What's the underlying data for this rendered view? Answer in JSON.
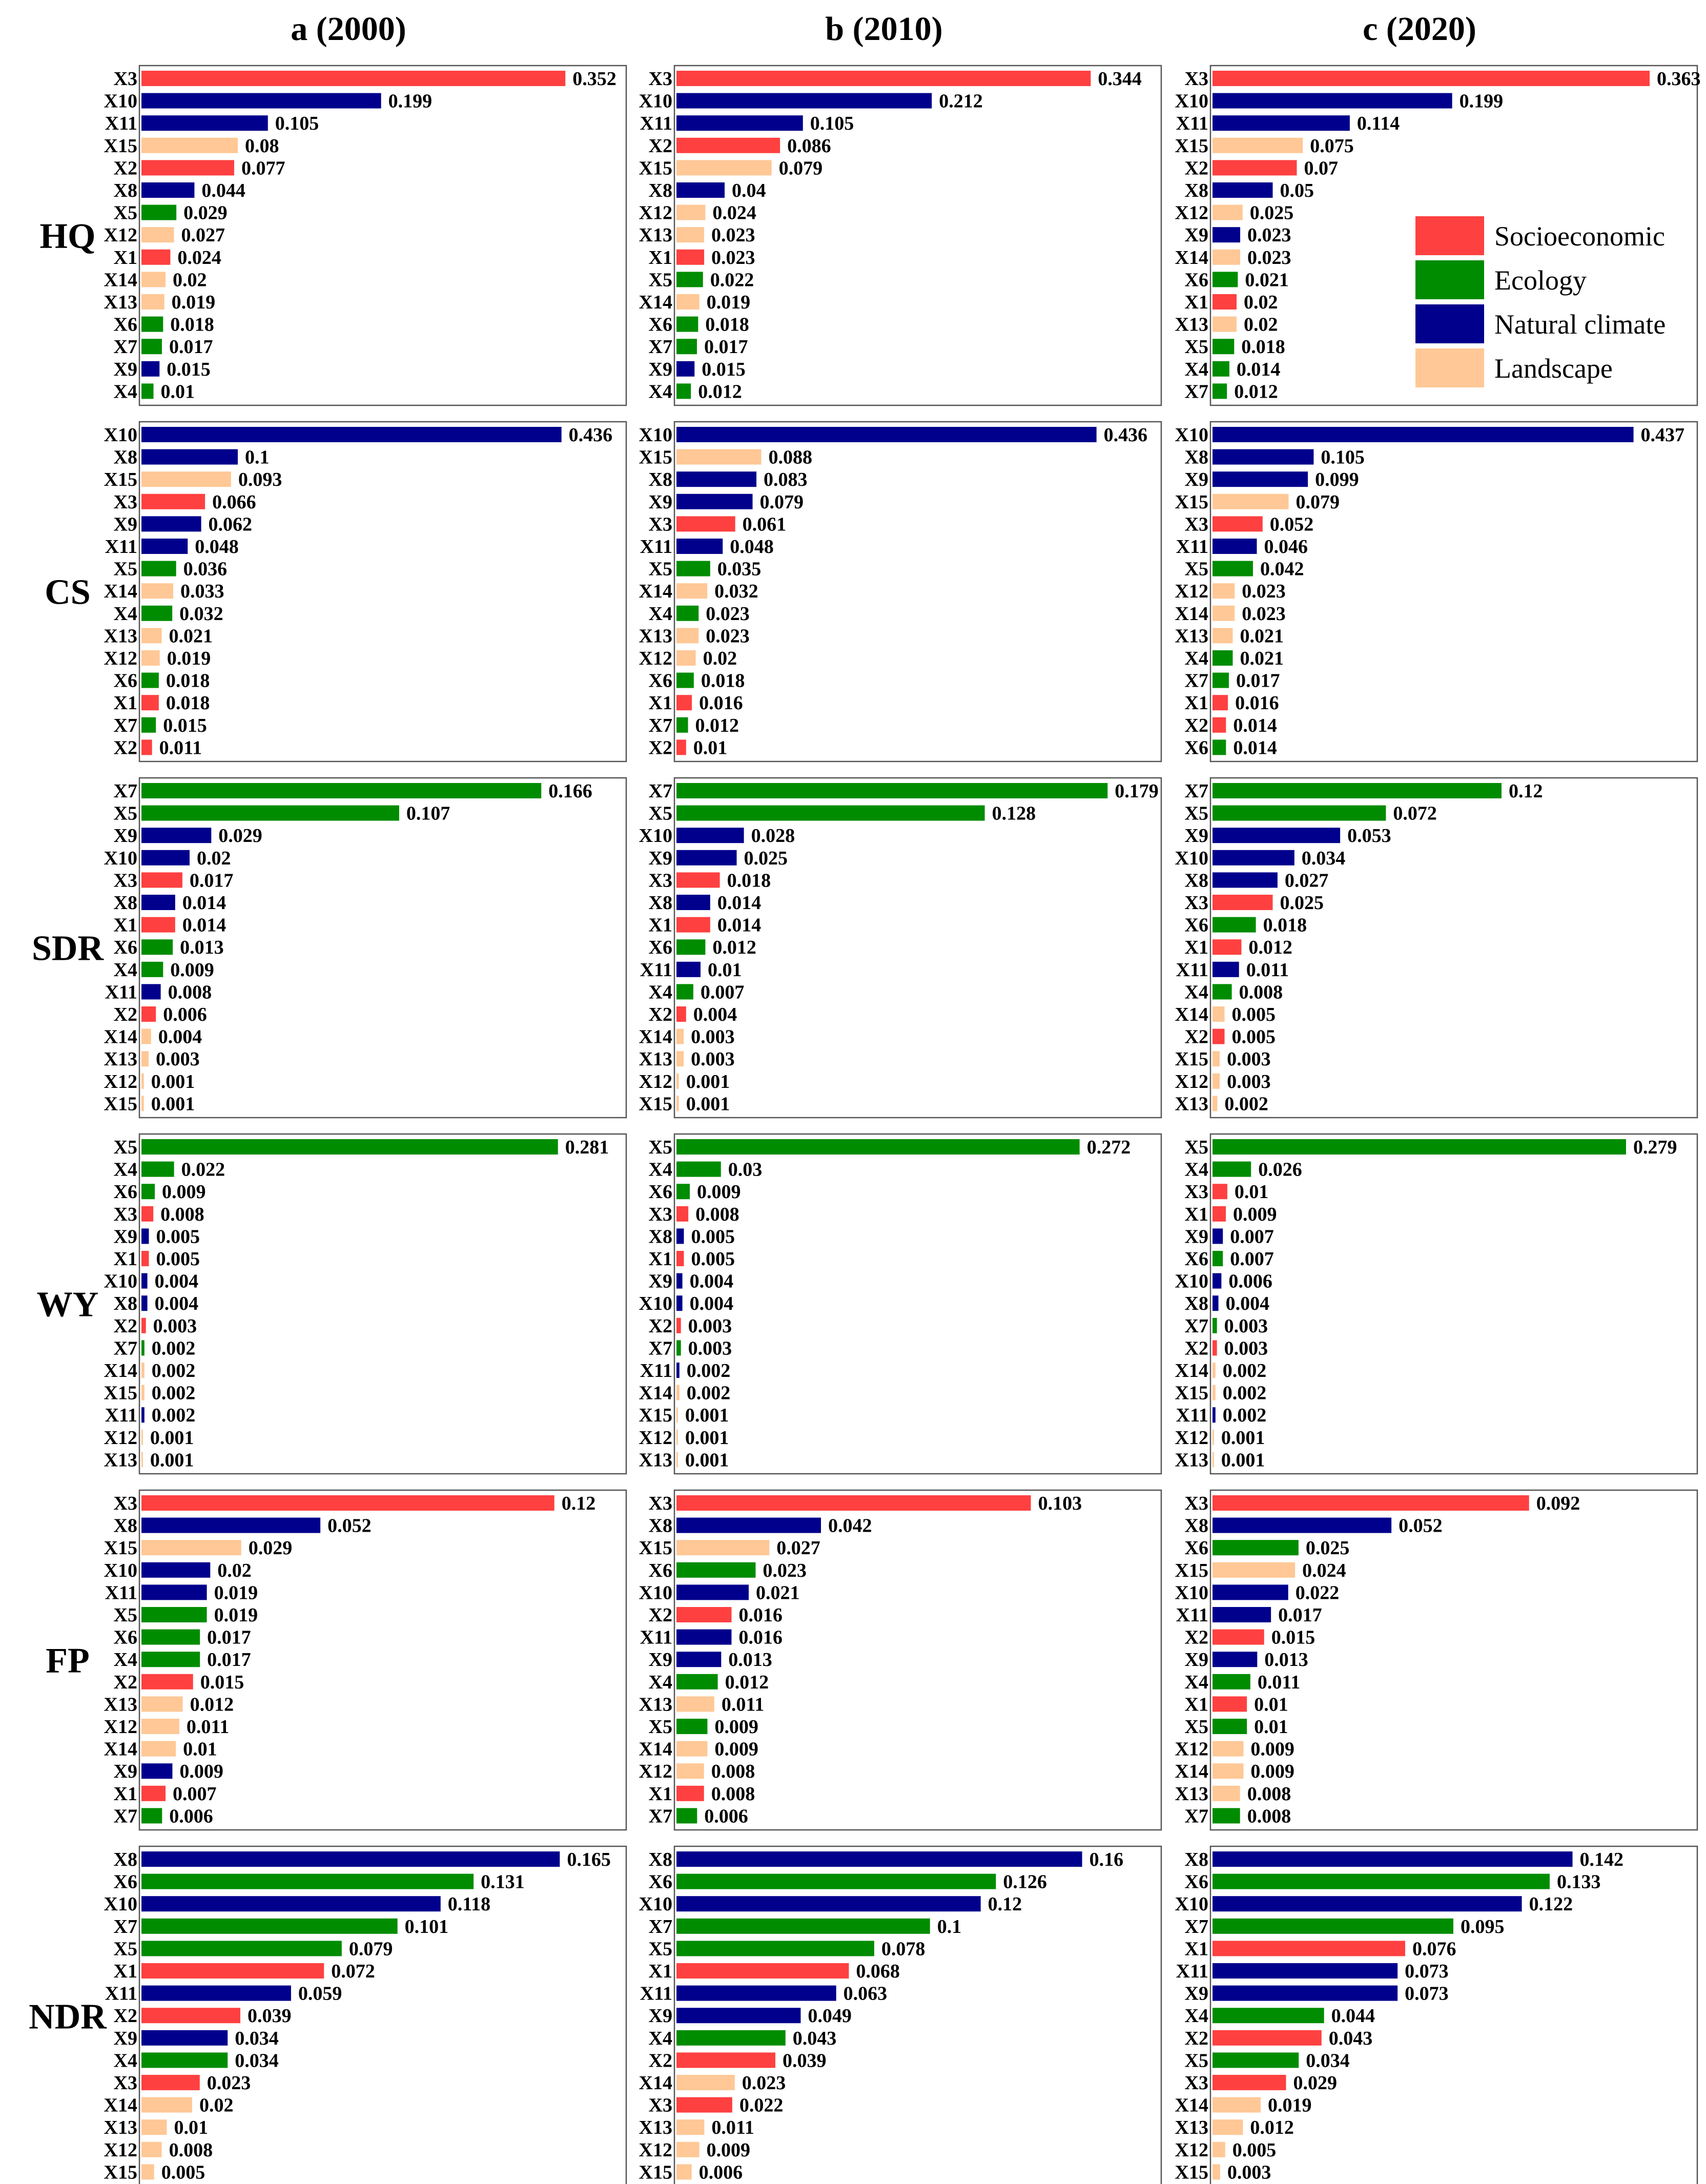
{
  "colors": {
    "Socioeconomic": "#FF4040",
    "Ecology": "#008C00",
    "Natural climate": "#00008C",
    "Landscape": "#FFC896"
  },
  "chart_data": {
    "type": "bar",
    "orientation": "horizontal",
    "columns": [
      "a (2000)",
      "b (2010)",
      "c (2020)"
    ],
    "rows": [
      "HQ",
      "CS",
      "SDR",
      "WY",
      "FP",
      "NDR"
    ],
    "legend": {
      "placement": "top-right panel (HQ, c (2020))",
      "entries": [
        "Socioeconomic",
        "Ecology",
        "Natural climate",
        "Landscape"
      ]
    },
    "variable_groups": {
      "X1": "Socioeconomic",
      "X2": "Socioeconomic",
      "X3": "Socioeconomic",
      "X4": "Ecology",
      "X5": "Ecology",
      "X6": "Ecology",
      "X7": "Ecology",
      "X8": "Natural climate",
      "X9": "Natural climate",
      "X10": "Natural climate",
      "X11": "Natural climate",
      "X12": "Landscape",
      "X13": "Landscape",
      "X14": "Landscape",
      "X15": "Landscape"
    },
    "panels": [
      {
        "row": "HQ",
        "column": "a (2000)",
        "xmax": 0.4,
        "categories": [
          "X3",
          "X10",
          "X11",
          "X15",
          "X2",
          "X8",
          "X5",
          "X12",
          "X1",
          "X14",
          "X13",
          "X6",
          "X7",
          "X9",
          "X4"
        ],
        "values": [
          "0.352",
          "0.199",
          "0.105",
          "0.08",
          "0.077",
          "0.044",
          "0.029",
          "0.027",
          "0.024",
          "0.02",
          "0.019",
          "0.018",
          "0.017",
          "0.015",
          "0.01"
        ]
      },
      {
        "row": "HQ",
        "column": "b (2010)",
        "xmax": 0.4,
        "categories": [
          "X3",
          "X10",
          "X11",
          "X2",
          "X15",
          "X8",
          "X12",
          "X13",
          "X1",
          "X5",
          "X14",
          "X6",
          "X7",
          "X9",
          "X4"
        ],
        "values": [
          "0.344",
          "0.212",
          "0.105",
          "0.086",
          "0.079",
          "0.04",
          "0.024",
          "0.023",
          "0.023",
          "0.022",
          "0.019",
          "0.018",
          "0.017",
          "0.015",
          "0.012"
        ]
      },
      {
        "row": "HQ",
        "column": "c (2020)",
        "xmax": 0.4,
        "categories": [
          "X3",
          "X10",
          "X11",
          "X15",
          "X2",
          "X8",
          "X12",
          "X9",
          "X14",
          "X6",
          "X1",
          "X13",
          "X5",
          "X4",
          "X7"
        ],
        "values": [
          "0.363",
          "0.199",
          "0.114",
          "0.075",
          "0.07",
          "0.05",
          "0.025",
          "0.023",
          "0.023",
          "0.021",
          "0.02",
          "0.02",
          "0.018",
          "0.014",
          "0.012"
        ]
      },
      {
        "row": "CS",
        "column": "a (2000)",
        "xmax": 0.5,
        "categories": [
          "X10",
          "X8",
          "X15",
          "X3",
          "X9",
          "X11",
          "X5",
          "X14",
          "X4",
          "X13",
          "X12",
          "X6",
          "X1",
          "X7",
          "X2"
        ],
        "values": [
          "0.436",
          "0.1",
          "0.093",
          "0.066",
          "0.062",
          "0.048",
          "0.036",
          "0.033",
          "0.032",
          "0.021",
          "0.019",
          "0.018",
          "0.018",
          "0.015",
          "0.011"
        ]
      },
      {
        "row": "CS",
        "column": "b (2010)",
        "xmax": 0.5,
        "categories": [
          "X10",
          "X15",
          "X8",
          "X9",
          "X3",
          "X11",
          "X5",
          "X14",
          "X4",
          "X13",
          "X12",
          "X6",
          "X1",
          "X7",
          "X2"
        ],
        "values": [
          "0.436",
          "0.088",
          "0.083",
          "0.079",
          "0.061",
          "0.048",
          "0.035",
          "0.032",
          "0.023",
          "0.023",
          "0.02",
          "0.018",
          "0.016",
          "0.012",
          "0.01"
        ]
      },
      {
        "row": "CS",
        "column": "c (2020)",
        "xmax": 0.5,
        "categories": [
          "X10",
          "X8",
          "X9",
          "X15",
          "X3",
          "X11",
          "X5",
          "X12",
          "X14",
          "X13",
          "X4",
          "X7",
          "X1",
          "X2",
          "X6"
        ],
        "values": [
          "0.437",
          "0.105",
          "0.099",
          "0.079",
          "0.052",
          "0.046",
          "0.042",
          "0.023",
          "0.023",
          "0.021",
          "0.021",
          "0.017",
          "0.016",
          "0.014",
          "0.014"
        ]
      },
      {
        "row": "SDR",
        "column": "a (2000)",
        "xmax": 0.2,
        "categories": [
          "X7",
          "X5",
          "X9",
          "X10",
          "X3",
          "X8",
          "X1",
          "X6",
          "X4",
          "X11",
          "X2",
          "X14",
          "X13",
          "X12",
          "X15"
        ],
        "values": [
          "0.166",
          "0.107",
          "0.029",
          "0.02",
          "0.017",
          "0.014",
          "0.014",
          "0.013",
          "0.009",
          "0.008",
          "0.006",
          "0.004",
          "0.003",
          "0.001",
          "0.001"
        ]
      },
      {
        "row": "SDR",
        "column": "b (2010)",
        "xmax": 0.2,
        "categories": [
          "X7",
          "X5",
          "X10",
          "X9",
          "X3",
          "X8",
          "X1",
          "X6",
          "X11",
          "X4",
          "X2",
          "X14",
          "X13",
          "X12",
          "X15"
        ],
        "values": [
          "0.179",
          "0.128",
          "0.028",
          "0.025",
          "0.018",
          "0.014",
          "0.014",
          "0.012",
          "0.01",
          "0.007",
          "0.004",
          "0.003",
          "0.003",
          "0.001",
          "0.001"
        ]
      },
      {
        "row": "SDR",
        "column": "c (2020)",
        "xmax": 0.2,
        "categories": [
          "X7",
          "X5",
          "X9",
          "X10",
          "X8",
          "X3",
          "X6",
          "X1",
          "X11",
          "X4",
          "X14",
          "X2",
          "X15",
          "X12",
          "X13"
        ],
        "values": [
          "0.12",
          "0.072",
          "0.053",
          "0.034",
          "0.027",
          "0.025",
          "0.018",
          "0.012",
          "0.011",
          "0.008",
          "0.005",
          "0.005",
          "0.003",
          "0.003",
          "0.002"
        ]
      },
      {
        "row": "WY",
        "column": "a (2000)",
        "xmax": 0.325,
        "categories": [
          "X5",
          "X4",
          "X6",
          "X3",
          "X9",
          "X1",
          "X10",
          "X8",
          "X2",
          "X7",
          "X14",
          "X15",
          "X11",
          "X12",
          "X13"
        ],
        "values": [
          "0.281",
          "0.022",
          "0.009",
          "0.008",
          "0.005",
          "0.005",
          "0.004",
          "0.004",
          "0.003",
          "0.002",
          "0.002",
          "0.002",
          "0.002",
          "0.001",
          "0.001"
        ]
      },
      {
        "row": "WY",
        "column": "b (2010)",
        "xmax": 0.325,
        "categories": [
          "X5",
          "X4",
          "X6",
          "X3",
          "X8",
          "X1",
          "X9",
          "X10",
          "X2",
          "X7",
          "X11",
          "X14",
          "X15",
          "X12",
          "X13"
        ],
        "values": [
          "0.272",
          "0.03",
          "0.009",
          "0.008",
          "0.005",
          "0.005",
          "0.004",
          "0.004",
          "0.003",
          "0.003",
          "0.002",
          "0.002",
          "0.001",
          "0.001",
          "0.001"
        ]
      },
      {
        "row": "WY",
        "column": "c (2020)",
        "xmax": 0.325,
        "categories": [
          "X5",
          "X4",
          "X3",
          "X1",
          "X9",
          "X6",
          "X10",
          "X8",
          "X7",
          "X2",
          "X14",
          "X15",
          "X11",
          "X12",
          "X13"
        ],
        "values": [
          "0.279",
          "0.026",
          "0.01",
          "0.009",
          "0.007",
          "0.007",
          "0.006",
          "0.004",
          "0.003",
          "0.003",
          "0.002",
          "0.002",
          "0.002",
          "0.001",
          "0.001"
        ]
      },
      {
        "row": "FP",
        "column": "a (2000)",
        "xmax": 0.14,
        "categories": [
          "X3",
          "X8",
          "X15",
          "X10",
          "X11",
          "X5",
          "X6",
          "X4",
          "X2",
          "X13",
          "X12",
          "X14",
          "X9",
          "X1",
          "X7"
        ],
        "values": [
          "0.12",
          "0.052",
          "0.029",
          "0.02",
          "0.019",
          "0.019",
          "0.017",
          "0.017",
          "0.015",
          "0.012",
          "0.011",
          "0.01",
          "0.009",
          "0.007",
          "0.006"
        ]
      },
      {
        "row": "FP",
        "column": "b (2010)",
        "xmax": 0.14,
        "categories": [
          "X3",
          "X8",
          "X15",
          "X6",
          "X10",
          "X2",
          "X11",
          "X9",
          "X4",
          "X13",
          "X5",
          "X14",
          "X12",
          "X1",
          "X7"
        ],
        "values": [
          "0.103",
          "0.042",
          "0.027",
          "0.023",
          "0.021",
          "0.016",
          "0.016",
          "0.013",
          "0.012",
          "0.011",
          "0.009",
          "0.009",
          "0.008",
          "0.008",
          "0.006"
        ]
      },
      {
        "row": "FP",
        "column": "c (2020)",
        "xmax": 0.14,
        "categories": [
          "X3",
          "X8",
          "X6",
          "X15",
          "X10",
          "X11",
          "X2",
          "X9",
          "X4",
          "X1",
          "X5",
          "X12",
          "X14",
          "X13",
          "X7"
        ],
        "values": [
          "0.092",
          "0.052",
          "0.025",
          "0.024",
          "0.022",
          "0.017",
          "0.015",
          "0.013",
          "0.011",
          "0.01",
          "0.01",
          "0.009",
          "0.009",
          "0.008",
          "0.008"
        ]
      },
      {
        "row": "NDR",
        "column": "a (2000)",
        "xmax": 0.19,
        "categories": [
          "X8",
          "X6",
          "X10",
          "X7",
          "X5",
          "X1",
          "X11",
          "X2",
          "X9",
          "X4",
          "X3",
          "X14",
          "X13",
          "X12",
          "X15"
        ],
        "values": [
          "0.165",
          "0.131",
          "0.118",
          "0.101",
          "0.079",
          "0.072",
          "0.059",
          "0.039",
          "0.034",
          "0.034",
          "0.023",
          "0.02",
          "0.01",
          "0.008",
          "0.005"
        ]
      },
      {
        "row": "NDR",
        "column": "b (2010)",
        "xmax": 0.19,
        "categories": [
          "X8",
          "X6",
          "X10",
          "X7",
          "X5",
          "X1",
          "X11",
          "X9",
          "X4",
          "X2",
          "X14",
          "X3",
          "X13",
          "X12",
          "X15"
        ],
        "values": [
          "0.16",
          "0.126",
          "0.12",
          "0.1",
          "0.078",
          "0.068",
          "0.063",
          "0.049",
          "0.043",
          "0.039",
          "0.023",
          "0.022",
          "0.011",
          "0.009",
          "0.006"
        ]
      },
      {
        "row": "NDR",
        "column": "c (2020)",
        "xmax": 0.19,
        "categories": [
          "X8",
          "X6",
          "X10",
          "X7",
          "X1",
          "X11",
          "X9",
          "X4",
          "X2",
          "X5",
          "X3",
          "X14",
          "X13",
          "X12",
          "X15"
        ],
        "values": [
          "0.142",
          "0.133",
          "0.122",
          "0.095",
          "0.076",
          "0.073",
          "0.073",
          "0.044",
          "0.043",
          "0.034",
          "0.029",
          "0.019",
          "0.012",
          "0.005",
          "0.003"
        ]
      }
    ]
  }
}
